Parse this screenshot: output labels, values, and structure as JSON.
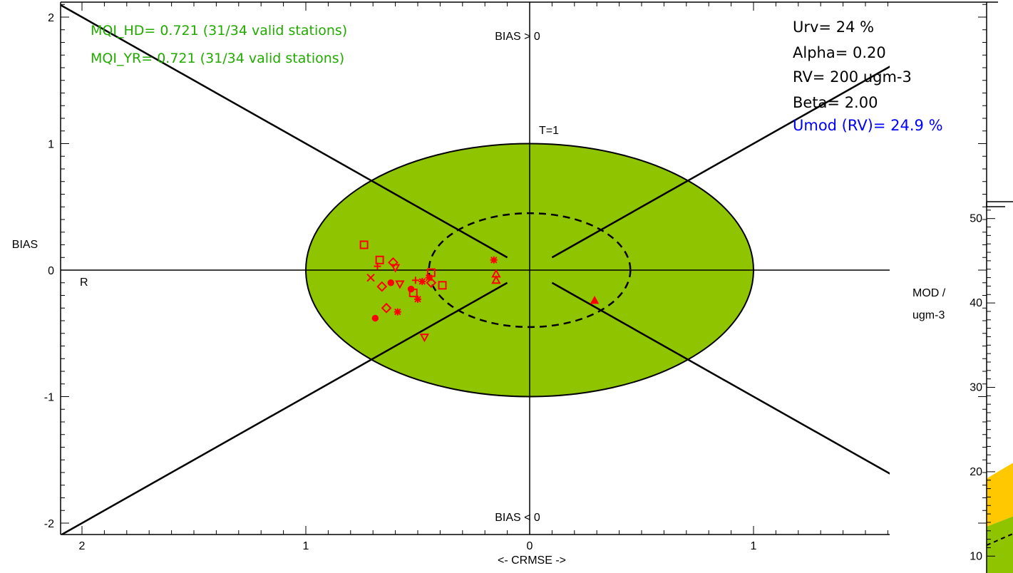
{
  "chart_data": [
    {
      "type": "scatter",
      "title": "",
      "xlabel": "<- CRMSE ->",
      "ylabel": "BIAS",
      "xlim": [
        -2.1,
        1.6
      ],
      "ylim": [
        -2.1,
        2.1
      ],
      "x_ticks": [
        {
          "value": -2,
          "label": "2"
        },
        {
          "value": -1,
          "label": "1"
        },
        {
          "value": 0,
          "label": "0"
        },
        {
          "value": 1,
          "label": "1"
        }
      ],
      "y_ticks": [
        {
          "value": 2,
          "label": "2"
        },
        {
          "value": 1,
          "label": "1"
        },
        {
          "value": 0,
          "label": "0"
        },
        {
          "value": -1,
          "label": "-1"
        },
        {
          "value": -2,
          "label": "-2"
        }
      ],
      "annotations": {
        "bias_pos": "BIAS > 0",
        "bias_neg": "BIAS < 0",
        "r_label": "R",
        "t_label": "T=1"
      },
      "mqi_hd": "MQI_HD= 0.721 (31/34 valid stations)",
      "mqi_yr": "MQI_YR= 0.721 (31/34 valid stations)",
      "info": {
        "urv": "Urv= 24 %",
        "alpha": "Alpha= 0.20",
        "rv": "RV= 200 ugm-3",
        "beta": "Beta= 2.00",
        "umod": "Umod (RV)= 24.9 %"
      },
      "regions": {
        "outer_ellipse": {
          "rx": 1.0,
          "ry": 1.0,
          "color": "#8fc400"
        },
        "inner_dashed_ellipse": {
          "rx": 0.45,
          "ry": 0.45
        }
      },
      "points": [
        {
          "x": -0.74,
          "y": 0.2,
          "m": "square"
        },
        {
          "x": -0.67,
          "y": 0.08,
          "m": "square"
        },
        {
          "x": -0.68,
          "y": 0.03,
          "m": "plus"
        },
        {
          "x": -0.61,
          "y": 0.06,
          "m": "diamond"
        },
        {
          "x": -0.6,
          "y": 0.02,
          "m": "down"
        },
        {
          "x": -0.71,
          "y": -0.06,
          "m": "x"
        },
        {
          "x": -0.66,
          "y": -0.13,
          "m": "diamond"
        },
        {
          "x": -0.62,
          "y": -0.1,
          "m": "dot"
        },
        {
          "x": -0.58,
          "y": -0.11,
          "m": "down"
        },
        {
          "x": -0.53,
          "y": -0.15,
          "m": "dot"
        },
        {
          "x": -0.51,
          "y": -0.08,
          "m": "plus"
        },
        {
          "x": -0.52,
          "y": -0.18,
          "m": "square"
        },
        {
          "x": -0.5,
          "y": -0.23,
          "m": "star"
        },
        {
          "x": -0.48,
          "y": -0.09,
          "m": "star"
        },
        {
          "x": -0.45,
          "y": -0.06,
          "m": "star"
        },
        {
          "x": -0.44,
          "y": -0.02,
          "m": "square"
        },
        {
          "x": -0.44,
          "y": -0.1,
          "m": "diamond"
        },
        {
          "x": -0.39,
          "y": -0.12,
          "m": "square"
        },
        {
          "x": -0.64,
          "y": -0.3,
          "m": "diamond"
        },
        {
          "x": -0.59,
          "y": -0.33,
          "m": "star"
        },
        {
          "x": -0.69,
          "y": -0.38,
          "m": "dot"
        },
        {
          "x": -0.47,
          "y": -0.53,
          "m": "down"
        },
        {
          "x": -0.16,
          "y": 0.08,
          "m": "star"
        },
        {
          "x": -0.15,
          "y": -0.03,
          "m": "up"
        },
        {
          "x": -0.15,
          "y": -0.08,
          "m": "up"
        },
        {
          "x": 0.29,
          "y": -0.24,
          "m": "upfill"
        }
      ]
    },
    {
      "type": "area",
      "title": "",
      "xlabel": "",
      "ylabel": "MOD / ugm-3",
      "y_ticks": [
        {
          "value": 50,
          "label": "50"
        },
        {
          "value": 40,
          "label": "40"
        },
        {
          "value": 30,
          "label": "30"
        },
        {
          "value": 20,
          "label": "20"
        },
        {
          "value": 10,
          "label": "10"
        }
      ],
      "ylim": [
        8,
        52
      ],
      "colors": {
        "orange": "#ffc800",
        "green": "#8fc400"
      }
    }
  ]
}
